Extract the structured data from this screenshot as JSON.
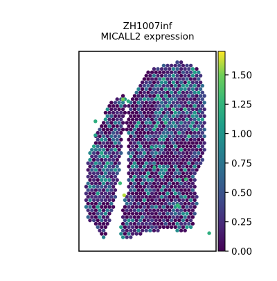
{
  "chart_data": {
    "type": "scatter",
    "title": "ZH1007inf\nMICALL2 expression",
    "title_lines": [
      "ZH1007inf",
      "MICALL2 expression"
    ],
    "xlabel": "",
    "ylabel": "",
    "colormap": "viridis",
    "colorbar": {
      "vmin": 0.0,
      "vmax": 1.7,
      "ticks": [
        0.0,
        0.25,
        0.5,
        0.75,
        1.0,
        1.25,
        1.5
      ],
      "tick_labels": [
        "0.00",
        "0.25",
        "0.50",
        "0.75",
        "1.00",
        "1.25",
        "1.50"
      ]
    },
    "spots": {
      "description_of_tissue": "left strip and right larger region of hexagonal spatial spots",
      "high_value_points": [
        {
          "region": "left",
          "x": 0.33,
          "y": 0.72,
          "value": 1.6
        },
        {
          "region": "left",
          "x": 0.3,
          "y": 0.66,
          "value": 1.3
        },
        {
          "region": "left",
          "x": 0.12,
          "y": 0.42,
          "value": 1.1
        },
        {
          "region": "left",
          "x": 0.12,
          "y": 0.35,
          "value": 1.2
        },
        {
          "region": "left",
          "x": 0.36,
          "y": 0.25,
          "value": 1.2
        },
        {
          "region": "left",
          "x": 0.32,
          "y": 0.24,
          "value": 1.5
        },
        {
          "region": "right",
          "x": 0.72,
          "y": 0.77,
          "value": 1.3
        },
        {
          "region": "right",
          "x": 0.88,
          "y": 0.3,
          "value": 0.8
        },
        {
          "region": "right",
          "x": 0.55,
          "y": 0.58,
          "value": 1.2
        },
        {
          "region": "right",
          "x": 0.78,
          "y": 0.64,
          "value": 1.3
        },
        {
          "region": "right",
          "x": 0.53,
          "y": 0.48,
          "value": 1.1
        },
        {
          "region": "right",
          "x": 0.95,
          "y": 0.91,
          "value": 1.2
        }
      ]
    }
  }
}
